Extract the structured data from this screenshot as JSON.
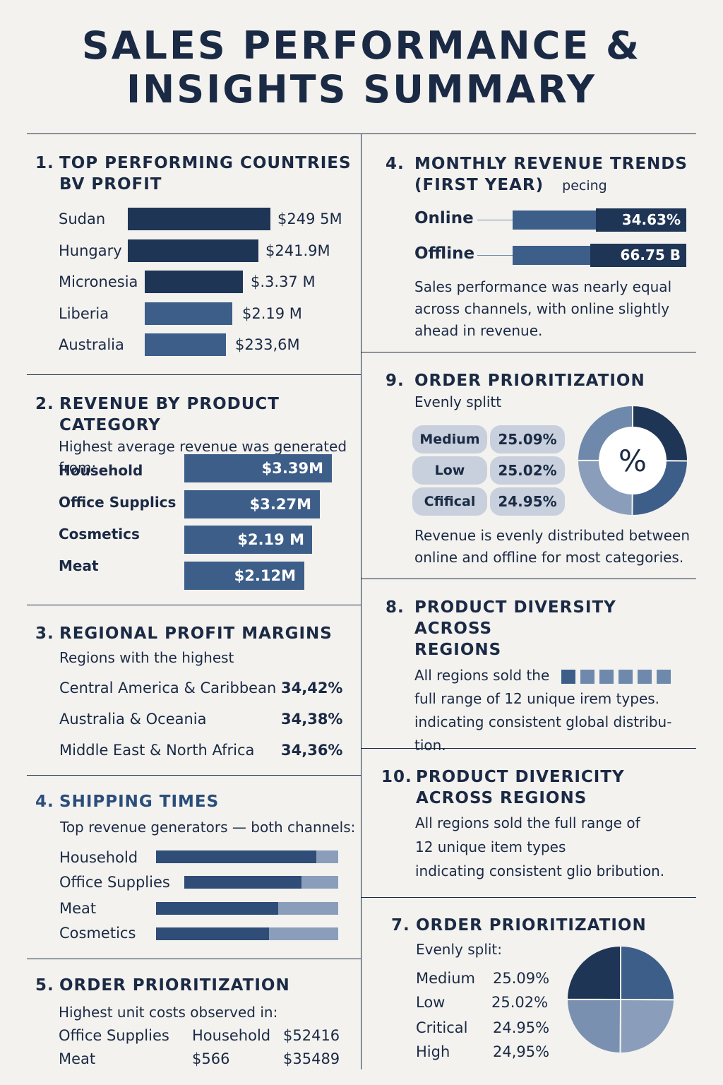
{
  "title": {
    "line1": "SALES PERFORMANCE &",
    "line2": "INSIGHTS SUMMARY"
  },
  "colors": {
    "dark": "#1f3556",
    "mid": "#3d5e89",
    "light": "#8a9ebb",
    "pill": "#c7d0dc",
    "background": "#f3f2ef"
  },
  "s1": {
    "num": "1.",
    "heading1": "TOP PERFORMING COUNTRIES",
    "heading2": "BV PROFIT",
    "items": [
      {
        "label": "Sudan",
        "value": "$249 5M"
      },
      {
        "label": "Hungary",
        "value": "$241.9M"
      },
      {
        "label": "Micronesia",
        "value": "$.3.37 M"
      },
      {
        "label": "Liberia",
        "value": "$2.19 M"
      },
      {
        "label": "Australia",
        "value": "$233,6M"
      }
    ]
  },
  "s2": {
    "num": "2.",
    "heading": "REVENUE BY PRODUCT CATEGORY",
    "sub1": "Highest average revenue was generated",
    "sub2": "from:",
    "items": [
      {
        "label": "Household",
        "value": "$3.39M"
      },
      {
        "label": "Office Supplics",
        "value": "$3.27M"
      },
      {
        "label": "Cosmetics",
        "value": "$2.19 M"
      },
      {
        "label": "Meat",
        "value": "$2.12M"
      }
    ]
  },
  "s3": {
    "num": "3.",
    "heading": "REGIONAL PROFIT MARGINS",
    "sub": "Regions with the highest",
    "items": [
      {
        "label": "Central America & Caribbean",
        "value": "34,42%"
      },
      {
        "label": "Australia & Oceania",
        "value": "34,38%"
      },
      {
        "label": "Middle East & North Africa",
        "value": "34,36%"
      }
    ]
  },
  "s4a": {
    "num": "4.",
    "heading": "SHIPPING TIMES",
    "sub": "Top revenue generators — both channels:",
    "items": [
      {
        "label": "Household",
        "fill": 0.88
      },
      {
        "label": "Office Supplies",
        "fill": 0.76
      },
      {
        "label": "Meat",
        "fill": 0.67
      },
      {
        "label": "Cosmetics",
        "fill": 0.62
      }
    ]
  },
  "s5": {
    "num": "5.",
    "heading": "ORDER PRIORITIZATION",
    "sub": "Highest unit costs observed in:",
    "rows": [
      [
        "Office Supplies",
        "Household",
        "$52416"
      ],
      [
        "Meat",
        "$566",
        "$35489"
      ]
    ]
  },
  "s4b": {
    "num": "4.",
    "heading1": "MONTHLY REVENUE TRENDS",
    "heading2": "(FIRST YEAR)",
    "aside": "pecing",
    "items": [
      {
        "label": "Online",
        "value": "34.63%"
      },
      {
        "label": "Offline",
        "value": "66.75 B"
      }
    ],
    "note": [
      "Sales performance was nearly equal",
      "across channels, with online slightly",
      "ahead in revenue."
    ]
  },
  "s9": {
    "num": "9.",
    "heading": "ORDER PRIORITIZATION",
    "sub": "Evenly splitt",
    "items": [
      {
        "label": "Medium",
        "value": "25.09%"
      },
      {
        "label": "Low",
        "value": "25.02%"
      },
      {
        "label": "Cfifical",
        "value": "24.95%"
      }
    ],
    "donut_symbol": "%",
    "note": [
      "Revenue is evenly distributed between",
      "online and offline for most categories."
    ]
  },
  "s8": {
    "num": "8.",
    "heading1": "PRODUCT DIVERSITY ACROSS",
    "heading2": "REGIONS",
    "lines": [
      "All regions sold the",
      "full range of 12 unique irem types.",
      "indicating consistent global distribu-",
      "tion."
    ]
  },
  "s10": {
    "num": "10.",
    "heading1": "PRODUCT DIVERICITY",
    "heading2": "ACROSS REGIONS",
    "lines": [
      "All regions sold the full range of",
      "12 unique item types",
      "indicating consistent glio bribution."
    ]
  },
  "s7": {
    "num": "7.",
    "heading": "ORDER PRIORITIZATION",
    "sub": "Evenly split:",
    "items": [
      {
        "label": "Medium",
        "value": "25.09%"
      },
      {
        "label": "Low",
        "value": "25.02%"
      },
      {
        "label": "Critical",
        "value": "24.95%"
      },
      {
        "label": "High",
        "value": "24,95%"
      }
    ]
  }
}
